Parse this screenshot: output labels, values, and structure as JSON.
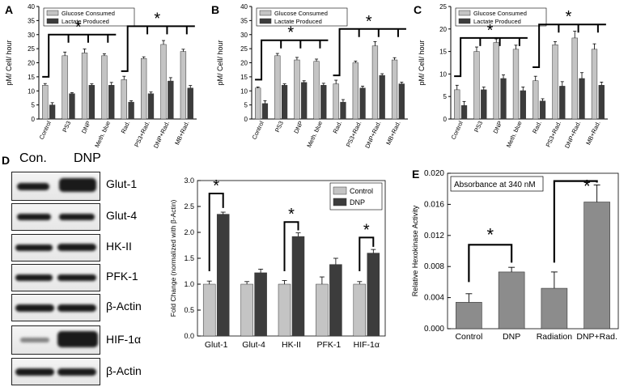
{
  "panels": {
    "A": {
      "letter": "A",
      "ylabel": "pM/ Cell/ hour",
      "ylim": [
        0,
        40
      ],
      "ticks": [
        0,
        5,
        10,
        15,
        20,
        25,
        30,
        35,
        40
      ],
      "legend": [
        "Glucose Consumed",
        "Lactate Produced"
      ],
      "categories": [
        "Control",
        "PS3",
        "DNP",
        "Meth. blue",
        "Rad.",
        "PS3+Rad.",
        "DNP+Rad.",
        "MB+Rad."
      ],
      "glucose": [
        12,
        22.5,
        23.5,
        22.5,
        14,
        21.5,
        26.5,
        24
      ],
      "glucose_err": [
        0.6,
        1.3,
        1.4,
        0.7,
        1.2,
        0.6,
        1.4,
        0.8
      ],
      "lactate": [
        5,
        9,
        12,
        12,
        6,
        9,
        13.5,
        11
      ],
      "lactate_err": [
        0.8,
        0.4,
        0.5,
        1.0,
        0.5,
        0.6,
        1.2,
        0.9
      ],
      "star": "*"
    },
    "B": {
      "letter": "B",
      "ylabel": "pM/ Cell/ hour",
      "ylim": [
        0,
        40
      ],
      "ticks": [
        0,
        5,
        10,
        15,
        20,
        25,
        30,
        35,
        40
      ],
      "legend": [
        "Glucose Consumed",
        "Lactate Produced"
      ],
      "categories": [
        "Control",
        "PS3",
        "DNP",
        "Meth. blue",
        "Rad.",
        "PS3+Rad.",
        "DNP+Rad.",
        "MB+Rad."
      ],
      "glucose": [
        11,
        22.5,
        21,
        20.5,
        12.5,
        20,
        26,
        21
      ],
      "glucose_err": [
        0.4,
        0.8,
        0.9,
        0.8,
        1.3,
        0.6,
        1.5,
        0.8
      ],
      "lactate": [
        5.5,
        12,
        13,
        12,
        6,
        11,
        15.5,
        12.5
      ],
      "lactate_err": [
        1.0,
        0.5,
        0.6,
        0.7,
        0.9,
        0.7,
        0.6,
        0.6
      ],
      "star": "*"
    },
    "C": {
      "letter": "C",
      "ylabel": "pM/ Cell/ hour",
      "ylim": [
        0,
        25
      ],
      "ticks": [
        0,
        5,
        10,
        15,
        20,
        25
      ],
      "legend": [
        "Glucose Consumed",
        "Lactate Produced"
      ],
      "categories": [
        "Control",
        "PS3",
        "DNP",
        "Meth. blue",
        "Rad.",
        "PS3+Rad.",
        "DNP+Rad.",
        "MB+Rad."
      ],
      "glucose": [
        6.5,
        15,
        17,
        15.5,
        8.5,
        16.5,
        18,
        15.5
      ],
      "glucose_err": [
        1.0,
        1.0,
        0.8,
        0.9,
        1.0,
        0.7,
        1.5,
        1.2
      ],
      "lactate": [
        3,
        6.5,
        9,
        6.3,
        4,
        7.3,
        9,
        7.5
      ],
      "lactate_err": [
        0.9,
        0.6,
        0.8,
        0.8,
        0.5,
        1.0,
        1.3,
        0.7
      ],
      "star": "*"
    },
    "D": {
      "letter": "D",
      "blot_lanes": [
        "Con.",
        "DNP"
      ],
      "blots": [
        "Glut-1",
        "Glut-4",
        "HK-II",
        "PFK-1",
        "β-Actin",
        "HIF-1α",
        "β-Actin"
      ],
      "ylabel": "Fold Change (normalized with β-Actin)",
      "ylim": [
        0,
        3.0
      ],
      "ticks": [
        "0.0",
        "0.5",
        "1.0",
        "1.5",
        "2.0",
        "2.5",
        "3.0"
      ],
      "legend": [
        "Control",
        "DNP"
      ],
      "categories": [
        "Glut-1",
        "Glut-4",
        "HK-II",
        "PFK-1",
        "HIF-1α"
      ],
      "control": [
        1.0,
        1.0,
        1.0,
        1.0,
        1.0
      ],
      "control_err": [
        0.06,
        0.05,
        0.07,
        0.14,
        0.05
      ],
      "dnp": [
        2.35,
        1.22,
        1.92,
        1.38,
        1.6
      ],
      "dnp_err": [
        0.04,
        0.07,
        0.07,
        0.12,
        0.07
      ],
      "star": "*"
    },
    "E": {
      "letter": "E",
      "title": "Absorbance at 340 nM",
      "ylabel": "Relative Hexokinase Activity",
      "ylim": [
        0,
        0.02
      ],
      "ticks": [
        "0.000",
        "0.004",
        "0.008",
        "0.012",
        "0.016",
        "0.020"
      ],
      "categories": [
        "Control",
        "DNP",
        "Radiation",
        "DNP+Rad."
      ],
      "values": [
        0.0034,
        0.0073,
        0.0052,
        0.0163
      ],
      "errors": [
        0.0011,
        0.0006,
        0.0021,
        0.0022
      ],
      "star": "*"
    }
  },
  "chart_data": [
    {
      "type": "bar",
      "title": "A",
      "ylabel": "pM/ Cell/ hour",
      "ylim": [
        0,
        40
      ],
      "categories": [
        "Control",
        "PS3",
        "DNP",
        "Meth. blue",
        "Rad.",
        "PS3+Rad.",
        "DNP+Rad.",
        "MB+Rad."
      ],
      "series": [
        {
          "name": "Glucose Consumed",
          "values": [
            12,
            22.5,
            23.5,
            22.5,
            14,
            21.5,
            26.5,
            24
          ]
        },
        {
          "name": "Lactate Produced",
          "values": [
            5,
            9,
            12,
            12,
            6,
            9,
            13.5,
            11
          ]
        }
      ]
    },
    {
      "type": "bar",
      "title": "B",
      "ylabel": "pM/ Cell/ hour",
      "ylim": [
        0,
        40
      ],
      "categories": [
        "Control",
        "PS3",
        "DNP",
        "Meth. blue",
        "Rad.",
        "PS3+Rad.",
        "DNP+Rad.",
        "MB+Rad."
      ],
      "series": [
        {
          "name": "Glucose Consumed",
          "values": [
            11,
            22.5,
            21,
            20.5,
            12.5,
            20,
            26,
            21
          ]
        },
        {
          "name": "Lactate Produced",
          "values": [
            5.5,
            12,
            13,
            12,
            6,
            11,
            15.5,
            12.5
          ]
        }
      ]
    },
    {
      "type": "bar",
      "title": "C",
      "ylabel": "pM/ Cell/ hour",
      "ylim": [
        0,
        25
      ],
      "categories": [
        "Control",
        "PS3",
        "DNP",
        "Meth. blue",
        "Rad.",
        "PS3+Rad.",
        "DNP+Rad.",
        "MB+Rad."
      ],
      "series": [
        {
          "name": "Glucose Consumed",
          "values": [
            6.5,
            15,
            17,
            15.5,
            8.5,
            16.5,
            18,
            15.5
          ]
        },
        {
          "name": "Lactate Produced",
          "values": [
            3,
            6.5,
            9,
            6.3,
            4,
            7.3,
            9,
            7.5
          ]
        }
      ]
    },
    {
      "type": "bar",
      "title": "D",
      "ylabel": "Fold Change (normalized with β-Actin)",
      "ylim": [
        0,
        3.0
      ],
      "categories": [
        "Glut-1",
        "Glut-4",
        "HK-II",
        "PFK-1",
        "HIF-1α"
      ],
      "series": [
        {
          "name": "Control",
          "values": [
            1.0,
            1.0,
            1.0,
            1.0,
            1.0
          ]
        },
        {
          "name": "DNP",
          "values": [
            2.35,
            1.22,
            1.92,
            1.38,
            1.6
          ]
        }
      ]
    },
    {
      "type": "bar",
      "title": "E",
      "ylabel": "Relative Hexokinase Activity",
      "ylim": [
        0,
        0.02
      ],
      "categories": [
        "Control",
        "DNP",
        "Radiation",
        "DNP+Rad."
      ],
      "series": [
        {
          "name": "Absorbance at 340 nM",
          "values": [
            0.0034,
            0.0073,
            0.0052,
            0.0163
          ]
        }
      ]
    }
  ],
  "colors": {
    "light": "#c4c4c4",
    "dark": "#3c3c3c",
    "mid": "#8c8c8c",
    "axis": "#000000"
  }
}
